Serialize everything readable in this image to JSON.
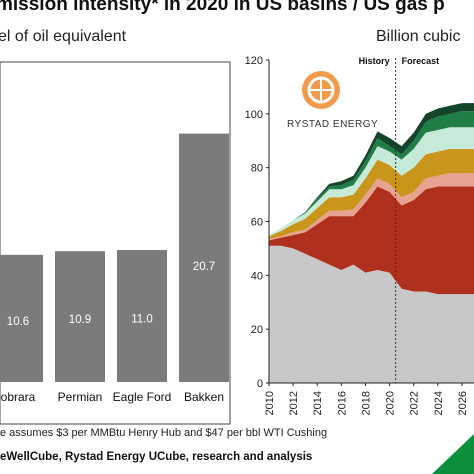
{
  "title": "mission intensity* in 2020 in US basins / US gas p",
  "left_subtitle": "el of oil equivalent",
  "right_subtitle": "Billion cubic",
  "footnote": "e assumes $3 per MMBtu Henry Hub and $47 per bbl WTI Cushing",
  "source": "eWellCube, Rystad Energy UCube, research and analysis",
  "logo_text": "RYSTAD ENERGY",
  "colors": {
    "bar": "#7b7b7b",
    "grey_area": "#c8c8c8",
    "red_area": "#b0301e",
    "pink_area": "#e8a291",
    "gold_area": "#c9951a",
    "mint_area": "#c6ead8",
    "green_area": "#1f7d46",
    "darkgreen_area": "#14452a",
    "green_triangle": "#0c8f3a"
  },
  "chart_data": [
    {
      "type": "bar",
      "categories": [
        "obrara",
        "Permian",
        "Eagle Ford",
        "Bakken"
      ],
      "values": [
        10.6,
        10.9,
        11.0,
        20.7
      ],
      "value_labels": [
        "10.6",
        "10.9",
        "11.0",
        "20.7"
      ],
      "ylim": [
        0,
        26
      ]
    },
    {
      "type": "area",
      "stacked": true,
      "ylabel": "Billion cubic",
      "x": [
        2010,
        2011,
        2012,
        2013,
        2014,
        2015,
        2016,
        2017,
        2018,
        2019,
        2020,
        2021,
        2022,
        2023,
        2024,
        2025,
        2026,
        2027
      ],
      "x_ticks": [
        "2010",
        "2012",
        "2014",
        "2016",
        "2018",
        "2020",
        "2022",
        "2024",
        "2026"
      ],
      "y_ticks": [
        "0",
        "20",
        "40",
        "60",
        "80",
        "100",
        "120"
      ],
      "ylim": [
        0,
        120
      ],
      "xlim": [
        2010,
        2027
      ],
      "divider_x": 2020.5,
      "annotations": [
        "History",
        "Forecast"
      ],
      "series": [
        {
          "color_key": "grey_area",
          "values": [
            51,
            51,
            50,
            48,
            46,
            44,
            42,
            44,
            41,
            42,
            41,
            35,
            34,
            34,
            33,
            33,
            33,
            33
          ]
        },
        {
          "color_key": "red_area",
          "values": [
            2,
            3,
            5,
            8,
            13,
            18,
            20,
            18,
            26,
            31,
            30,
            31,
            34,
            38,
            40,
            40,
            40,
            40
          ]
        },
        {
          "color_key": "pink_area",
          "values": [
            0.5,
            0.5,
            1,
            1,
            1.5,
            2,
            2,
            2.5,
            3,
            3,
            3,
            3,
            3,
            4,
            4,
            5,
            5,
            5
          ]
        },
        {
          "color_key": "gold_area",
          "values": [
            1,
            2,
            3,
            4,
            4.5,
            5,
            5,
            5.5,
            6,
            7,
            7,
            8,
            9,
            9,
            9,
            9,
            9,
            9
          ]
        },
        {
          "color_key": "mint_area",
          "values": [
            0.5,
            1,
            1.5,
            2,
            2.5,
            3,
            3,
            3.5,
            4,
            5,
            5,
            6,
            7,
            8,
            8,
            8,
            8,
            8
          ]
        },
        {
          "color_key": "green_area",
          "values": [
            0,
            0,
            0,
            0.5,
            1,
            1,
            1.5,
            2,
            2.5,
            3,
            2,
            2,
            3,
            4,
            5,
            5,
            6,
            6
          ]
        },
        {
          "color_key": "darkgreen_area",
          "values": [
            0,
            0,
            0,
            0,
            0.5,
            1,
            1.5,
            1.5,
            2,
            2.5,
            3,
            3,
            3,
            3,
            3,
            3,
            3,
            3
          ]
        }
      ]
    }
  ]
}
